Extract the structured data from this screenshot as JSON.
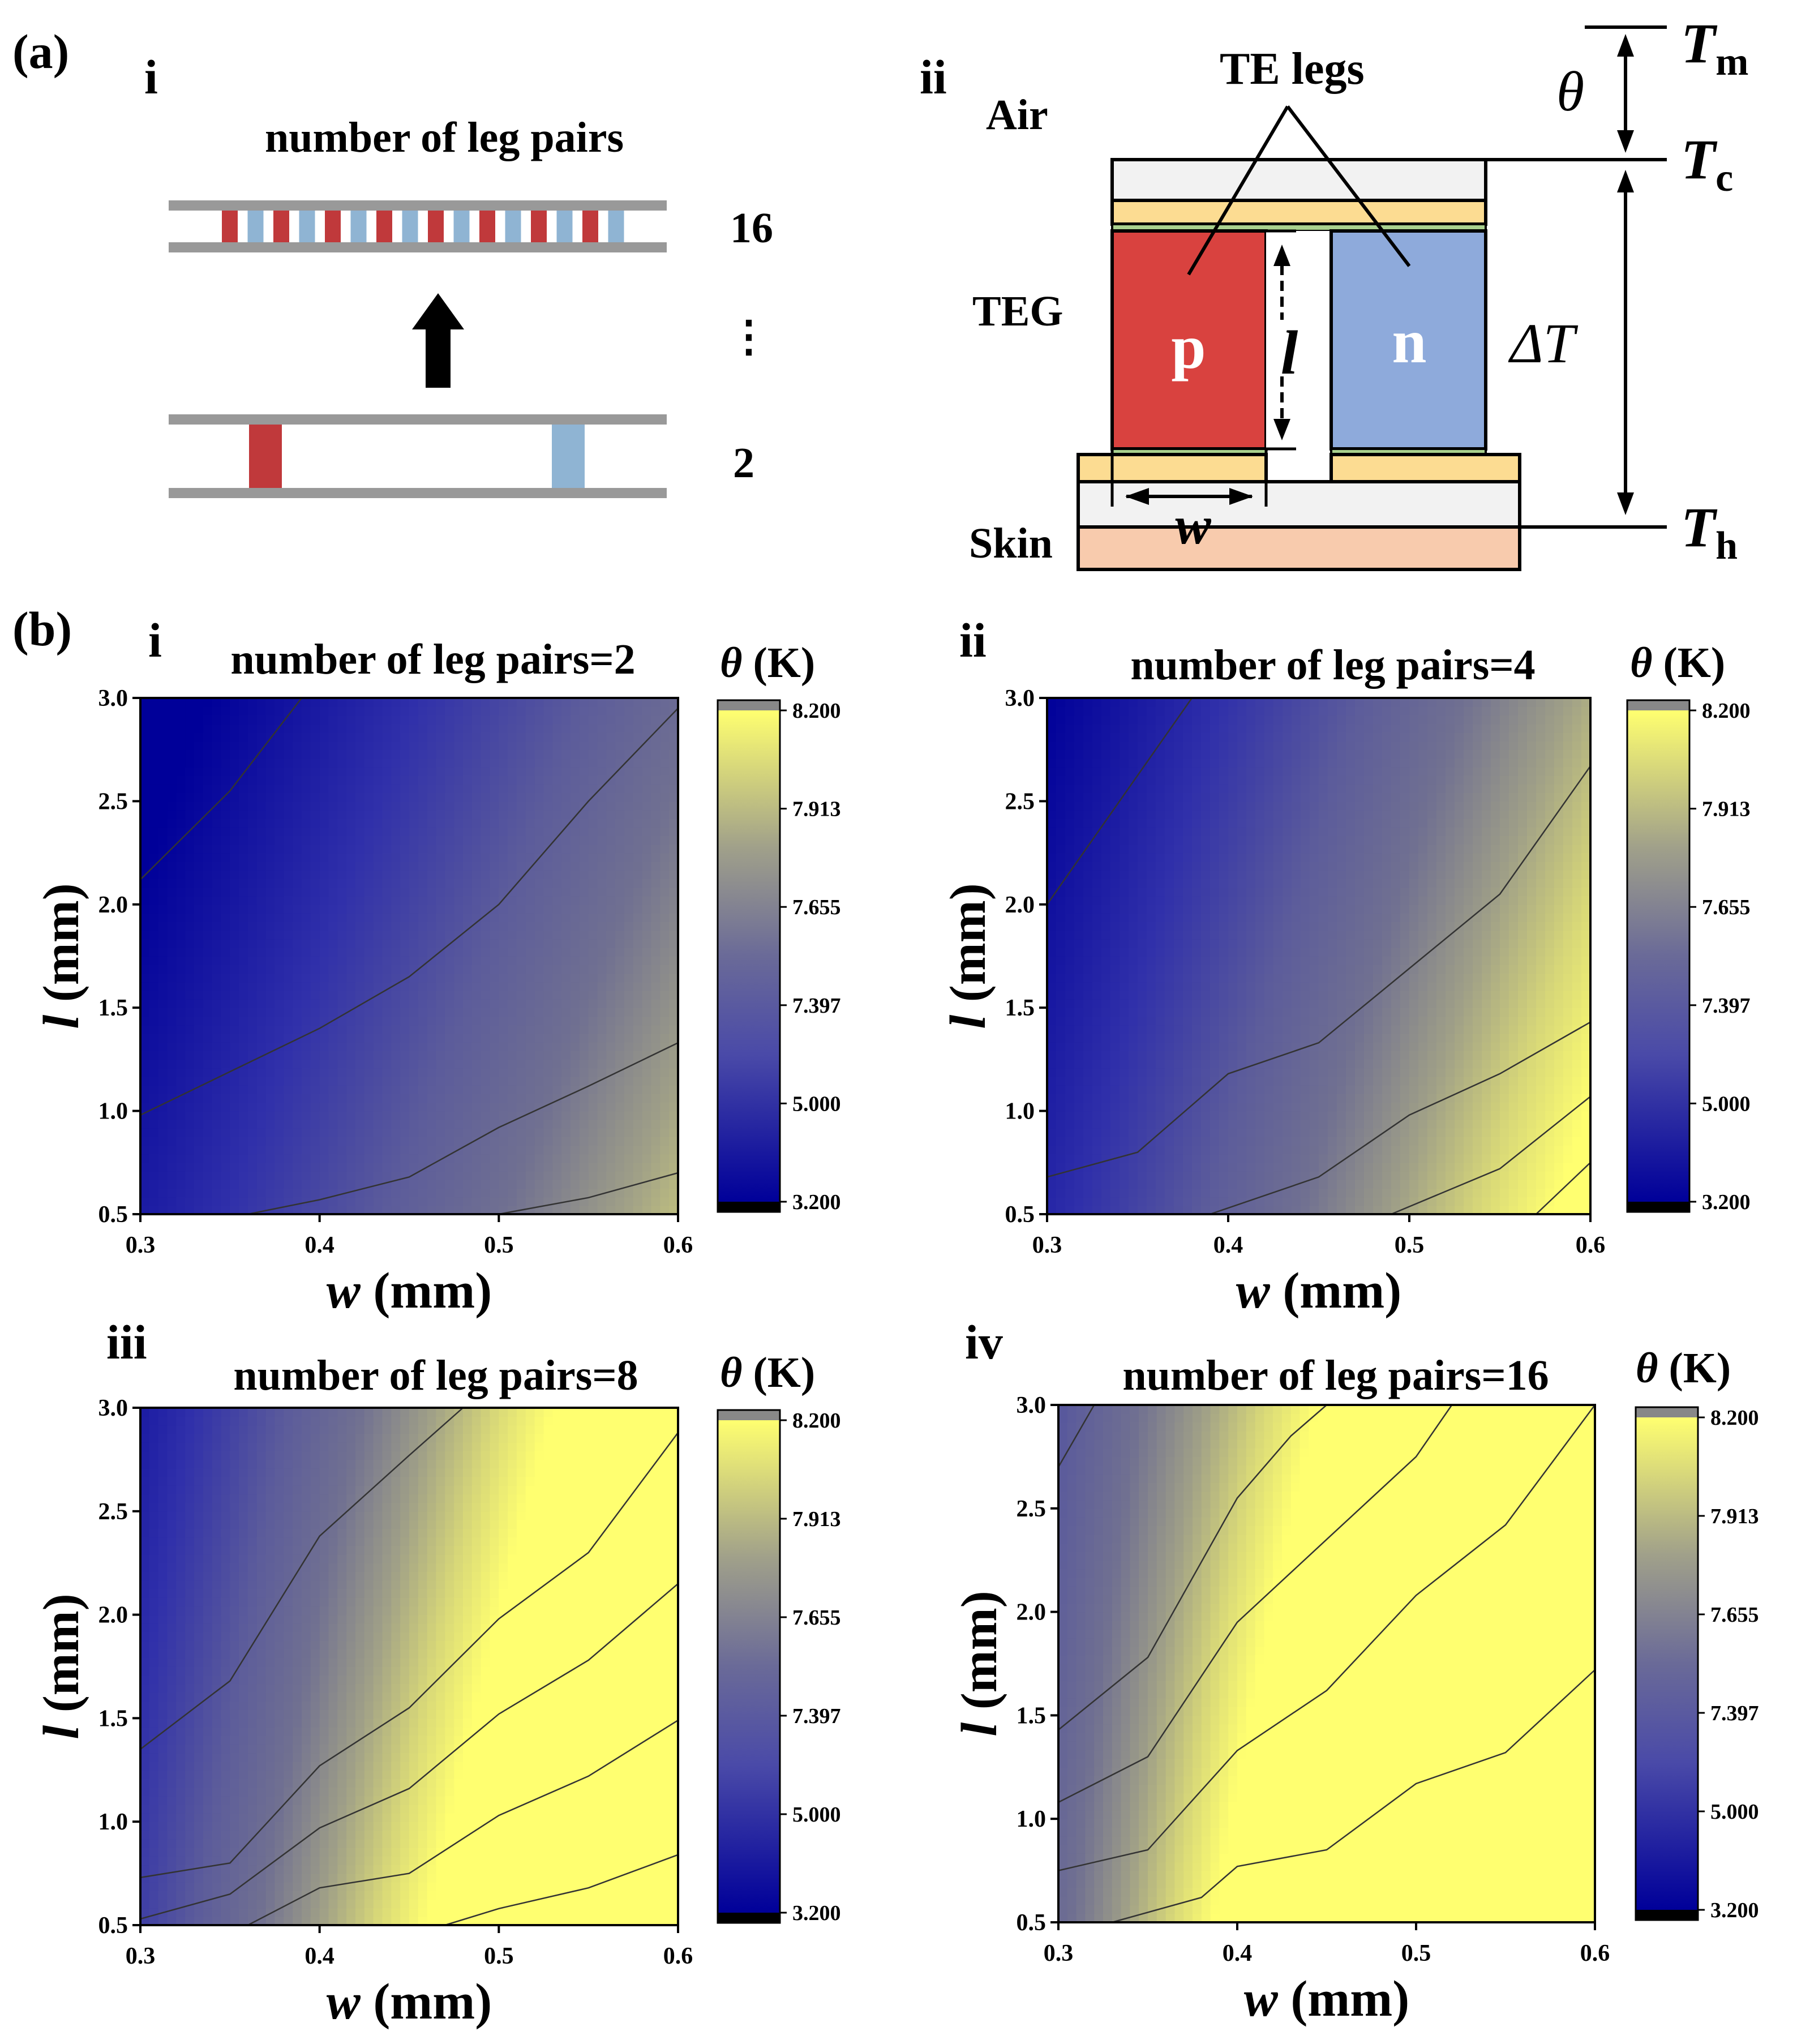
{
  "panel_a": {
    "label": "(a)",
    "sub_i": {
      "label": "i",
      "title": "number of leg pairs",
      "count_top": "16",
      "count_mid": "⋮",
      "count_bottom": "2"
    },
    "sub_ii": {
      "label": "ii",
      "te_legs": "TE legs",
      "air": "Air",
      "teg": "TEG",
      "skin": "Skin",
      "p": "p",
      "n": "n",
      "l": "l",
      "w": "w",
      "theta": "θ",
      "delta_t": "ΔT",
      "t_m": "T",
      "t_m_sub": "m",
      "t_c": "T",
      "t_c_sub": "c",
      "t_h": "T",
      "t_h_sub": "h"
    },
    "colors": {
      "p_leg": "#d9423f",
      "n_leg": "#8eaadb",
      "p_small": "#c0393b",
      "n_small": "#8fb4d3",
      "rail": "#999999",
      "insulator": "#f2f2f2",
      "electrode": "#fcdc92",
      "skin": "#f8cbad",
      "contact": "#a9d18e"
    }
  },
  "panel_b": {
    "label": "(b)",
    "colorbar": {
      "title_symbol": "θ",
      "title_unit": "(K)",
      "ticks": [
        "8.200",
        "7.913",
        "7.655",
        "7.397",
        "5.000",
        "3.200"
      ],
      "colors": {
        "low": "#000099",
        "mid_low": "#5a5a9a",
        "mid": "#9a9a8a",
        "high": "#ffff70",
        "over": "#888888",
        "under": "#000000"
      }
    }
  },
  "chart_data": [
    {
      "type": "heatmap",
      "panel": "i",
      "title": "number of leg pairs=2",
      "xlabel": "w (mm)",
      "ylabel": "l (mm)",
      "xlim": [
        0.3,
        0.6
      ],
      "ylim": [
        0.5,
        3.0
      ],
      "xticks": [
        "0.3",
        "0.4",
        "0.5",
        "0.6"
      ],
      "yticks": [
        "0.5",
        "1.0",
        "1.5",
        "2.0",
        "2.5",
        "3.0"
      ],
      "z_range": [
        3.2,
        8.2
      ],
      "leg_pairs": 2,
      "z_model": {
        "base": 3.9,
        "w_gain": 3.2,
        "l_gain": 1.1,
        "exp": 1.0
      },
      "contours": [
        [
          [
            0.3,
            2.12
          ],
          [
            0.35,
            2.55
          ],
          [
            0.39,
            3.0
          ]
        ],
        [
          [
            0.3,
            0.98
          ],
          [
            0.35,
            1.19
          ],
          [
            0.4,
            1.4
          ],
          [
            0.45,
            1.65
          ],
          [
            0.5,
            2.0
          ],
          [
            0.55,
            2.5
          ],
          [
            0.6,
            2.95
          ]
        ],
        [
          [
            0.36,
            0.5
          ],
          [
            0.4,
            0.57
          ],
          [
            0.45,
            0.68
          ],
          [
            0.5,
            0.92
          ],
          [
            0.55,
            1.12
          ],
          [
            0.6,
            1.33
          ]
        ],
        [
          [
            0.5,
            0.5
          ],
          [
            0.55,
            0.58
          ],
          [
            0.6,
            0.7
          ]
        ]
      ]
    },
    {
      "type": "heatmap",
      "panel": "ii",
      "title": "number of leg pairs=4",
      "xlabel": "w (mm)",
      "ylabel": "l (mm)",
      "xlim": [
        0.3,
        0.6
      ],
      "ylim": [
        0.5,
        3.0
      ],
      "xticks": [
        "0.3",
        "0.4",
        "0.5",
        "0.6"
      ],
      "yticks": [
        "0.5",
        "1.0",
        "1.5",
        "2.0",
        "2.5",
        "3.0"
      ],
      "z_range": [
        3.2,
        8.2
      ],
      "leg_pairs": 4,
      "z_model": {
        "base": 4.2,
        "w_gain": 3.9,
        "l_gain": 1.0,
        "exp": 1.0
      },
      "contours": [
        [
          [
            0.3,
            2.0
          ],
          [
            0.34,
            2.5
          ],
          [
            0.38,
            3.0
          ]
        ],
        [
          [
            0.3,
            0.68
          ],
          [
            0.35,
            0.8
          ],
          [
            0.4,
            1.18
          ],
          [
            0.45,
            1.33
          ],
          [
            0.5,
            1.69
          ],
          [
            0.55,
            2.05
          ],
          [
            0.6,
            2.67
          ]
        ],
        [
          [
            0.39,
            0.5
          ],
          [
            0.45,
            0.68
          ],
          [
            0.5,
            0.98
          ],
          [
            0.55,
            1.18
          ],
          [
            0.6,
            1.43
          ]
        ],
        [
          [
            0.49,
            0.5
          ],
          [
            0.55,
            0.72
          ],
          [
            0.6,
            1.07
          ]
        ],
        [
          [
            0.57,
            0.5
          ],
          [
            0.6,
            0.75
          ]
        ]
      ]
    },
    {
      "type": "heatmap",
      "panel": "iii",
      "title": "number of leg pairs=8",
      "xlabel": "w (mm)",
      "ylabel": "l (mm)",
      "xlim": [
        0.3,
        0.6
      ],
      "ylim": [
        0.5,
        3.0
      ],
      "xticks": [
        "0.3",
        "0.4",
        "0.5",
        "0.6"
      ],
      "yticks": [
        "0.5",
        "1.0",
        "1.5",
        "2.0",
        "2.5",
        "3.0"
      ],
      "z_range": [
        3.2,
        8.2
      ],
      "leg_pairs": 8,
      "z_model": {
        "base": 4.8,
        "w_gain": 5.6,
        "l_gain": 0.9,
        "exp": 1.0
      },
      "contours": [
        [
          [
            0.3,
            1.35
          ],
          [
            0.35,
            1.68
          ],
          [
            0.4,
            2.38
          ],
          [
            0.45,
            2.77
          ],
          [
            0.48,
            3.0
          ]
        ],
        [
          [
            0.3,
            0.73
          ],
          [
            0.35,
            0.8
          ],
          [
            0.4,
            1.27
          ],
          [
            0.45,
            1.55
          ],
          [
            0.5,
            1.98
          ],
          [
            0.55,
            2.3
          ],
          [
            0.6,
            2.88
          ]
        ],
        [
          [
            0.3,
            0.53
          ],
          [
            0.35,
            0.65
          ],
          [
            0.4,
            0.97
          ],
          [
            0.45,
            1.16
          ],
          [
            0.5,
            1.52
          ],
          [
            0.55,
            1.78
          ],
          [
            0.6,
            2.15
          ]
        ],
        [
          [
            0.36,
            0.5
          ],
          [
            0.4,
            0.68
          ],
          [
            0.45,
            0.75
          ],
          [
            0.5,
            1.03
          ],
          [
            0.55,
            1.22
          ],
          [
            0.6,
            1.49
          ]
        ],
        [
          [
            0.47,
            0.5
          ],
          [
            0.5,
            0.58
          ],
          [
            0.55,
            0.68
          ],
          [
            0.6,
            0.84
          ]
        ]
      ]
    },
    {
      "type": "heatmap",
      "panel": "iv",
      "title": "number of leg pairs=16",
      "xlabel": "w (mm)",
      "ylabel": "l (mm)",
      "xlim": [
        0.3,
        0.6
      ],
      "ylim": [
        0.5,
        3.0
      ],
      "xticks": [
        "0.3",
        "0.4",
        "0.5",
        "0.6"
      ],
      "yticks": [
        "0.5",
        "1.0",
        "1.5",
        "2.0",
        "2.5",
        "3.0"
      ],
      "z_range": [
        3.2,
        8.2
      ],
      "leg_pairs": 16,
      "z_model": {
        "base": 6.0,
        "w_gain": 6.0,
        "l_gain": 0.7,
        "exp": 1.0
      },
      "contours": [
        [
          [
            0.3,
            2.7
          ],
          [
            0.32,
            3.0
          ]
        ],
        [
          [
            0.3,
            1.43
          ],
          [
            0.35,
            1.78
          ],
          [
            0.4,
            2.55
          ],
          [
            0.43,
            2.85
          ],
          [
            0.45,
            3.0
          ]
        ],
        [
          [
            0.3,
            1.08
          ],
          [
            0.35,
            1.3
          ],
          [
            0.4,
            1.95
          ],
          [
            0.45,
            2.35
          ],
          [
            0.5,
            2.75
          ],
          [
            0.52,
            3.0
          ]
        ],
        [
          [
            0.3,
            0.75
          ],
          [
            0.35,
            0.85
          ],
          [
            0.4,
            1.33
          ],
          [
            0.45,
            1.62
          ],
          [
            0.5,
            2.08
          ],
          [
            0.55,
            2.42
          ],
          [
            0.6,
            3.0
          ]
        ],
        [
          [
            0.33,
            0.5
          ],
          [
            0.38,
            0.62
          ],
          [
            0.4,
            0.77
          ],
          [
            0.45,
            0.85
          ],
          [
            0.5,
            1.17
          ],
          [
            0.55,
            1.32
          ],
          [
            0.6,
            1.72
          ]
        ]
      ]
    }
  ]
}
